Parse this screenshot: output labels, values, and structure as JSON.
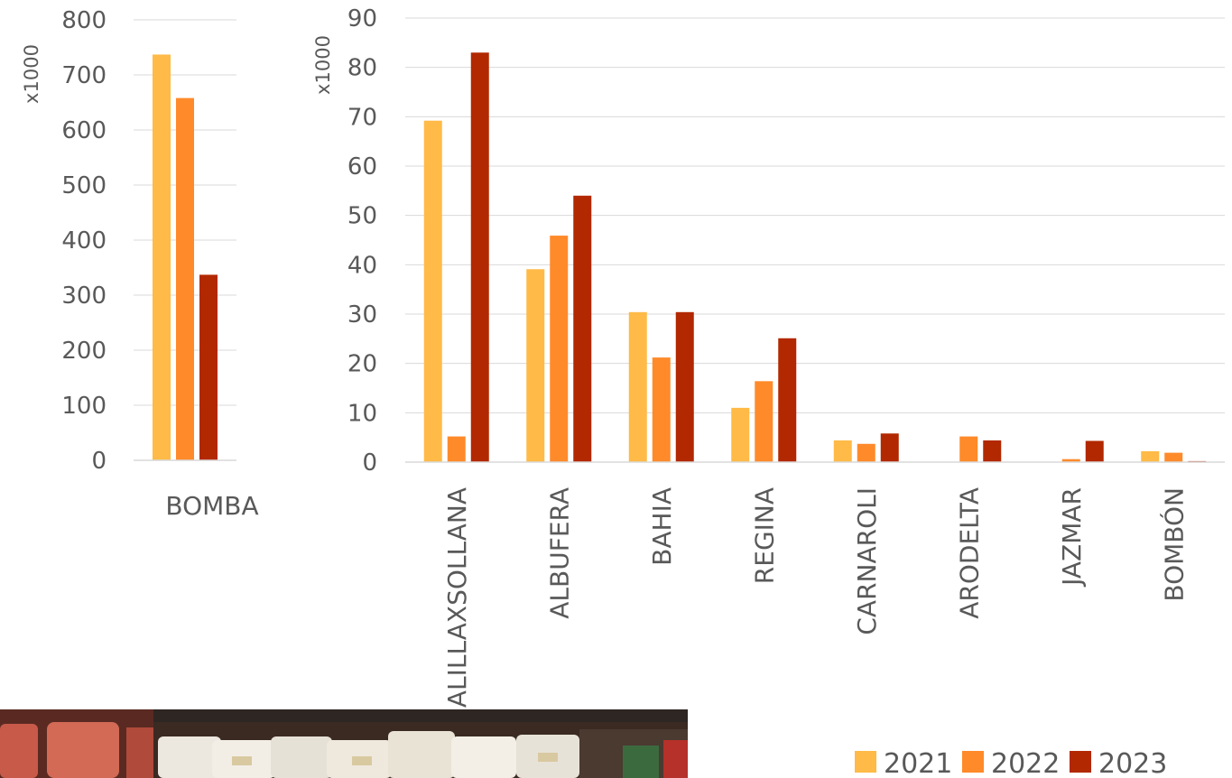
{
  "colors": {
    "2021": "#ffba47",
    "2022": "#ff8a2a",
    "2023": "#b22800",
    "grid": "#d9d9d9",
    "text": "#595959"
  },
  "legend": [
    "2021",
    "2022",
    "2023"
  ],
  "chart_data": [
    {
      "type": "bar",
      "unit_label": "x1000",
      "categories": [
        "BOMBA"
      ],
      "series": [
        {
          "name": "2021",
          "values": [
            737
          ]
        },
        {
          "name": "2022",
          "values": [
            658
          ]
        },
        {
          "name": "2023",
          "values": [
            337
          ]
        }
      ],
      "ylim": [
        0,
        800
      ],
      "yticks": [
        0,
        100,
        200,
        300,
        400,
        500,
        600,
        700,
        800
      ],
      "grid": true
    },
    {
      "type": "bar",
      "unit_label": "x1000",
      "categories": [
        "ALILLAXSOLLANA",
        "ALBUFERA",
        "BAHIA",
        "REGINA",
        "CARNAROLI",
        "ARODELTA",
        "JAZMAR",
        "BOMBÓN"
      ],
      "series": [
        {
          "name": "2021",
          "values": [
            69.2,
            39.1,
            30.4,
            11.0,
            4.4,
            0,
            0,
            2.2
          ]
        },
        {
          "name": "2022",
          "values": [
            5.2,
            45.9,
            21.2,
            16.4,
            3.7,
            5.2,
            0.6,
            1.9
          ]
        },
        {
          "name": "2023",
          "values": [
            83.0,
            54.0,
            30.4,
            25.1,
            5.8,
            4.4,
            4.3,
            0.2
          ]
        }
      ],
      "ylim": [
        0,
        90
      ],
      "yticks": [
        0,
        10,
        20,
        30,
        40,
        50,
        60,
        70,
        80,
        90
      ],
      "grid": true
    }
  ],
  "photo": {
    "description_icon": "rice-packages-shelf-image"
  }
}
